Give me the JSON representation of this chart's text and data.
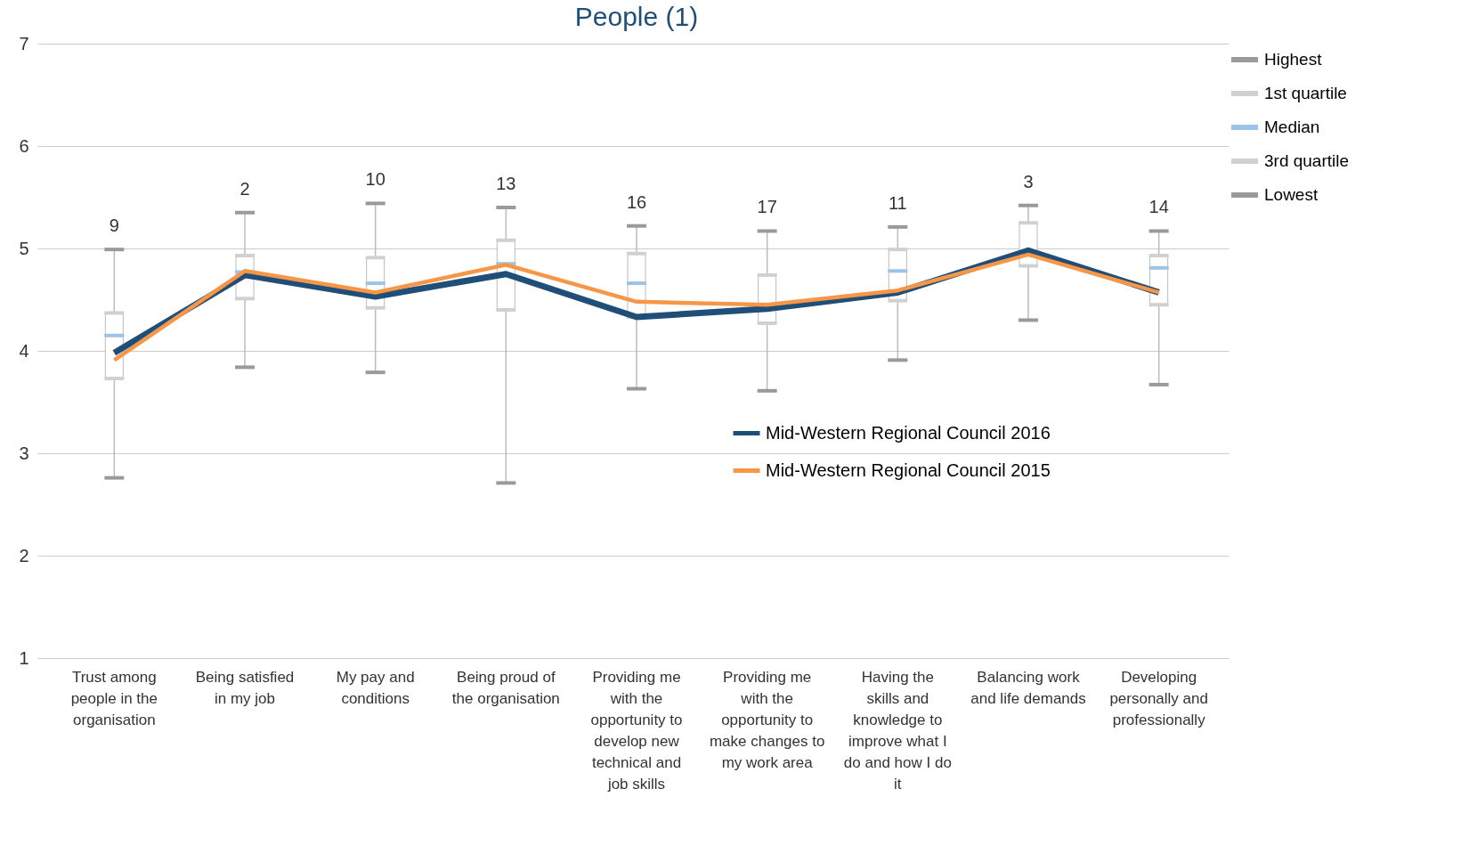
{
  "chart_data": {
    "type": "box",
    "title": "People (1)",
    "categories": [
      "Trust among people in the organisation",
      "Being satisfied in my job",
      "My pay and conditions",
      "Being proud of the organisation",
      "Providing me with the opportunity to develop new technical and job skills",
      "Providing me with the opportunity to make changes to my work area",
      "Having the skills and knowledge to improve what I do and how I do it",
      "Balancing work and life demands",
      "Developing personally and professionally"
    ],
    "boxes": [
      {
        "low": 2.76,
        "q1": 3.73,
        "median": 4.15,
        "q3": 4.37,
        "high": 4.99
      },
      {
        "low": 3.84,
        "q1": 4.51,
        "median": 4.77,
        "q3": 4.93,
        "high": 5.35
      },
      {
        "low": 3.79,
        "q1": 4.42,
        "median": 4.66,
        "q3": 4.91,
        "high": 5.44
      },
      {
        "low": 2.71,
        "q1": 4.4,
        "median": 4.85,
        "q3": 5.08,
        "high": 5.4
      },
      {
        "low": 3.63,
        "q1": 4.33,
        "median": 4.66,
        "q3": 4.95,
        "high": 5.22
      },
      {
        "low": 3.61,
        "q1": 4.27,
        "median": 4.45,
        "q3": 4.74,
        "high": 5.17
      },
      {
        "low": 3.91,
        "q1": 4.49,
        "median": 4.78,
        "q3": 4.99,
        "high": 5.21
      },
      {
        "low": 4.3,
        "q1": 4.83,
        "median": 4.95,
        "q3": 5.25,
        "high": 5.42
      },
      {
        "low": 3.67,
        "q1": 4.45,
        "median": 4.81,
        "q3": 4.93,
        "high": 5.17
      }
    ],
    "series": [
      {
        "name": "Mid-Western Regional Council 2016",
        "type": "line",
        "color": "#1f4e79",
        "values": [
          3.98,
          4.74,
          4.53,
          4.75,
          4.33,
          4.41,
          4.57,
          4.98,
          4.57
        ]
      },
      {
        "name": "Mid-Western Regional Council 2015",
        "type": "line",
        "color": "#f79646",
        "values": [
          3.91,
          4.78,
          4.57,
          4.84,
          4.48,
          4.45,
          4.59,
          4.94,
          4.57
        ]
      }
    ],
    "annotations": [
      "Highest",
      "1st quartile",
      "Median",
      "3rd quartile",
      "Lowest",
      "9",
      "2",
      "10",
      "13",
      "16",
      "17",
      "11",
      "3",
      "14"
    ],
    "ylim": [
      1,
      7
    ],
    "yticks": [
      1,
      2,
      3,
      4,
      5,
      6,
      7
    ],
    "grid": "y",
    "legend": "bottom right",
    "marker": "none",
    "line_style": "solid"
  }
}
